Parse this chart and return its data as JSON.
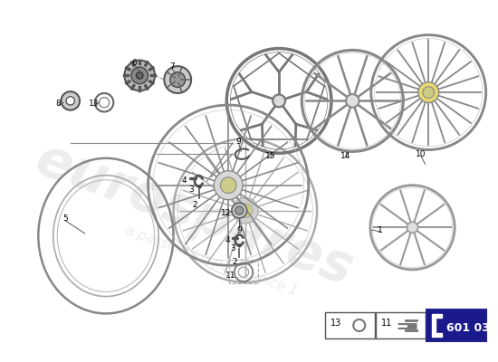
{
  "bg_color": "#ffffff",
  "watermark_color": "#cccccc",
  "part_number_box_color": "#1a1a8c",
  "part_number_box": "601 03",
  "line_color": "#555555",
  "spoke_color": "#999999",
  "spoke_color_dark": "#666666",
  "rim_color": "#888888"
}
